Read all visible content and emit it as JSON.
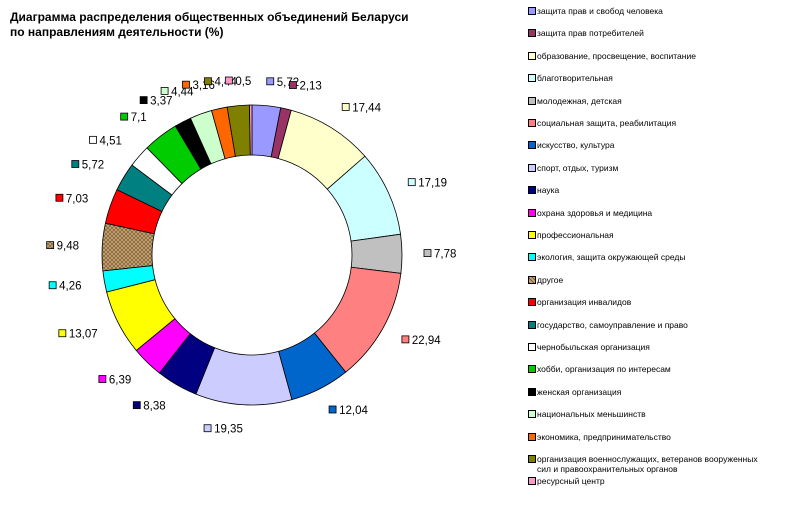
{
  "title": {
    "line1": "Диаграмма распределения общественных объединений Беларуси",
    "line2": "по направлениям деятельности (%)"
  },
  "chart_data": {
    "type": "pie",
    "variant": "doughnut",
    "title": "Диаграмма распределения общественных объединений Беларуси по направлениям деятельности (%)",
    "legend_position": "right",
    "values_note": "displayed data labels; order clockwise from 12 o'clock",
    "slices": [
      {
        "label": "защита прав и свобод человека",
        "value": 5.72,
        "color": "#9999ff"
      },
      {
        "label": "защита прав потребителей",
        "value": 2.13,
        "color": "#993366"
      },
      {
        "label": "образование, просвещение, воспитание",
        "value": 17.44,
        "color": "#ffffcc"
      },
      {
        "label": "благотворительная",
        "value": 17.19,
        "color": "#ccffff"
      },
      {
        "label": "молодежная, детская",
        "value": 7.78,
        "color": "#c0c0c0"
      },
      {
        "label": "социальная защита, реабилитация",
        "value": 22.94,
        "color": "#ff8080"
      },
      {
        "label": "искусство, культура",
        "value": 12.04,
        "color": "#0066cc"
      },
      {
        "label": "спорт, отдых, туризм",
        "value": 19.35,
        "color": "#ccccff"
      },
      {
        "label": "наука",
        "value": 8.38,
        "color": "#000080"
      },
      {
        "label": "охрана здоровья и медицина",
        "value": 6.39,
        "color": "#ff00ff"
      },
      {
        "label": "профессиональная",
        "value": 13.07,
        "color": "#ffff00"
      },
      {
        "label": "экология, защита окружающей среды",
        "value": 4.26,
        "color": "#00ffff"
      },
      {
        "label": "другое",
        "value": 9.48,
        "color": "#c8a878",
        "pattern": true
      },
      {
        "label": "организация инвалидов",
        "value": 7.03,
        "color": "#ff0000"
      },
      {
        "label": "государство, самоуправление и право",
        "value": 5.72,
        "color": "#008080"
      },
      {
        "label": "чернобыльская организация",
        "value": 4.51,
        "color": "#ffffff"
      },
      {
        "label": "хобби, организация по интересам",
        "value": 7.1,
        "color": "#00cc00"
      },
      {
        "label": "женская организация",
        "value": 3.37,
        "color": "#000000"
      },
      {
        "label": "национальных меньшинств",
        "value": 4.44,
        "color": "#ccffcc"
      },
      {
        "label": "экономика, предпринимательство",
        "value": 3.16,
        "color": "#ff6600"
      },
      {
        "label": "организация военнослужащих, ветеранов вооруженных сил и правоохранительных органов",
        "value": 4.44,
        "color": "#808000"
      },
      {
        "label": "ресурсный центр",
        "value": 0.5,
        "color": "#ff99cc"
      }
    ]
  },
  "legend": [
    {
      "lines": [
        "защита прав и свобод человека"
      ],
      "color": "#9999ff"
    },
    {
      "lines": [
        "защита прав потребителей"
      ],
      "color": "#993366"
    },
    {
      "lines": [
        "образование, просвещение, воспитание"
      ],
      "color": "#ffffcc"
    },
    {
      "lines": [
        "благотворительная"
      ],
      "color": "#ccffff"
    },
    {
      "lines": [
        "молодежная, детская"
      ],
      "color": "#c0c0c0"
    },
    {
      "lines": [
        "социальная защита, реабилитация"
      ],
      "color": "#ff8080"
    },
    {
      "lines": [
        "искусство, культура"
      ],
      "color": "#0066cc"
    },
    {
      "lines": [
        "спорт, отдых, туризм"
      ],
      "color": "#ccccff"
    },
    {
      "lines": [
        "наука"
      ],
      "color": "#000080"
    },
    {
      "lines": [
        "охрана здоровья и медицина"
      ],
      "color": "#ff00ff"
    },
    {
      "lines": [
        "профессиональная"
      ],
      "color": "#ffff00"
    },
    {
      "lines": [
        "экология, защита окружающей среды"
      ],
      "color": "#00ffff"
    },
    {
      "lines": [
        "другое"
      ],
      "color": "#c8a878"
    },
    {
      "lines": [
        "организация инвалидов"
      ],
      "color": "#ff0000"
    },
    {
      "lines": [
        "государство, самоуправление и право"
      ],
      "color": "#008080"
    },
    {
      "lines": [
        "чернобыльская организация"
      ],
      "color": "#ffffff"
    },
    {
      "lines": [
        "хобби, организация по интересам"
      ],
      "color": "#00cc00"
    },
    {
      "lines": [
        "женская организация"
      ],
      "color": "#000000"
    },
    {
      "lines": [
        "национальных меньшинств"
      ],
      "color": "#ccffcc"
    },
    {
      "lines": [
        "экономика, предпринимательство"
      ],
      "color": "#ff6600"
    },
    {
      "lines": [
        "организация военнослужащих, ветеранов вооруженных",
        "сил и правоохранительных органов"
      ],
      "color": "#808000"
    },
    {
      "lines": [
        "ресурсный центр"
      ],
      "color": "#ff99cc"
    }
  ]
}
